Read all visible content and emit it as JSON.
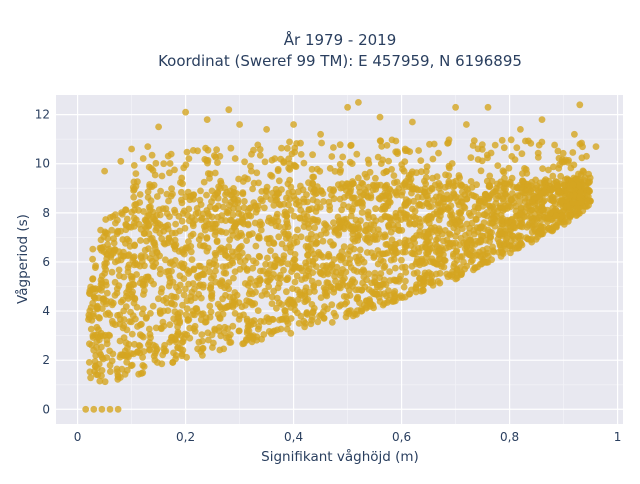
{
  "chart_data": {
    "type": "scatter",
    "title_lines": [
      "År 1979 - 2019",
      "Koordinat (Sweref 99 TM): E 457959, N 6196895"
    ],
    "xlabel": "Signifikant våghöjd (m)",
    "ylabel": "Vågperiod (s)",
    "xlim": [
      -0.04,
      1.01
    ],
    "ylim": [
      -0.6,
      12.8
    ],
    "xticks": [
      0,
      0.2,
      0.4,
      0.6,
      0.8,
      1
    ],
    "xtick_labels": [
      "0",
      "0,2",
      "0,4",
      "0,6",
      "0,8",
      "1"
    ],
    "yticks": [
      0,
      2,
      4,
      6,
      8,
      10,
      12
    ],
    "ytick_labels": [
      "0",
      "2",
      "4",
      "6",
      "8",
      "10",
      "12"
    ],
    "grid": true,
    "marker_color": "#d4a520",
    "plot_bg": "#e8e8f0",
    "series": [
      {
        "description": "dense scatter cloud of wave height vs wave period",
        "lower_envelope": [
          [
            0.02,
            1.2
          ],
          [
            0.05,
            1.1
          ],
          [
            0.1,
            1.3
          ],
          [
            0.15,
            1.7
          ],
          [
            0.2,
            2.0
          ],
          [
            0.3,
            2.6
          ],
          [
            0.4,
            3.1
          ],
          [
            0.5,
            3.7
          ],
          [
            0.6,
            4.5
          ],
          [
            0.7,
            5.3
          ],
          [
            0.8,
            6.3
          ],
          [
            0.9,
            7.5
          ],
          [
            0.95,
            8.3
          ]
        ],
        "upper_dense_envelope": [
          [
            0.02,
            6.5
          ],
          [
            0.05,
            7.7
          ],
          [
            0.1,
            8.5
          ],
          [
            0.2,
            8.9
          ],
          [
            0.3,
            9.1
          ],
          [
            0.4,
            9.2
          ],
          [
            0.5,
            9.2
          ],
          [
            0.6,
            9.3
          ],
          [
            0.7,
            9.3
          ],
          [
            0.8,
            9.3
          ],
          [
            0.9,
            9.4
          ],
          [
            0.95,
            9.5
          ]
        ],
        "sparse_points": [
          [
            0.13,
            10.7
          ],
          [
            0.15,
            11.5
          ],
          [
            0.2,
            12.1
          ],
          [
            0.24,
            11.8
          ],
          [
            0.28,
            12.2
          ],
          [
            0.3,
            11.6
          ],
          [
            0.35,
            11.4
          ],
          [
            0.4,
            11.6
          ],
          [
            0.45,
            11.2
          ],
          [
            0.5,
            12.3
          ],
          [
            0.52,
            12.5
          ],
          [
            0.56,
            11.9
          ],
          [
            0.62,
            11.7
          ],
          [
            0.7,
            12.3
          ],
          [
            0.72,
            11.6
          ],
          [
            0.76,
            12.3
          ],
          [
            0.82,
            11.4
          ],
          [
            0.86,
            11.8
          ],
          [
            0.93,
            12.4
          ],
          [
            0.96,
            10.7
          ],
          [
            0.92,
            11.2
          ],
          [
            0.1,
            10.6
          ],
          [
            0.05,
            9.7
          ],
          [
            0.08,
            10.1
          ]
        ],
        "zero_points": [
          [
            0.015,
            0
          ],
          [
            0.03,
            0
          ],
          [
            0.045,
            0
          ],
          [
            0.06,
            0
          ],
          [
            0.075,
            0
          ]
        ]
      }
    ]
  }
}
